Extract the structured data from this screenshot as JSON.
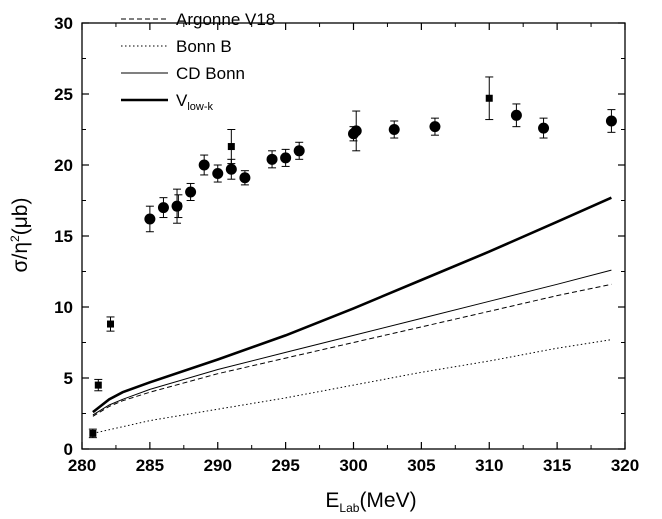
{
  "chart_data": {
    "type": "line",
    "xlabel": {
      "main": "E",
      "sub": "Lab",
      "rest": "(MeV)"
    },
    "ylabel": {
      "pre": "σ/η",
      "sup": "2",
      "rest": "(μb)"
    },
    "xlim": [
      280,
      320
    ],
    "ylim": [
      0,
      30
    ],
    "x_ticks": [
      280,
      285,
      290,
      295,
      300,
      305,
      310,
      315,
      320
    ],
    "y_ticks": [
      0,
      5,
      10,
      15,
      20,
      25,
      30
    ],
    "grid": false,
    "legend_position": "top-left",
    "series": [
      {
        "name": "Argonne V18",
        "name_sub": "",
        "style": "dashed",
        "width": 1,
        "x": [
          280.8,
          282,
          283,
          285,
          290,
          295,
          300,
          305,
          310,
          315,
          319
        ],
        "y": [
          2.3,
          3.0,
          3.4,
          4.0,
          5.3,
          6.4,
          7.5,
          8.6,
          9.7,
          10.8,
          11.6
        ]
      },
      {
        "name": "Bonn B",
        "name_sub": "",
        "style": "dotted",
        "width": 1,
        "x": [
          280.8,
          285,
          290,
          295,
          300,
          305,
          310,
          315,
          319
        ],
        "y": [
          1.1,
          2.0,
          2.8,
          3.6,
          4.5,
          5.4,
          6.2,
          7.1,
          7.7
        ]
      },
      {
        "name": "CD Bonn",
        "name_sub": "",
        "style": "solid",
        "width": 1,
        "x": [
          280.8,
          282,
          283,
          285,
          290,
          295,
          300,
          305,
          310,
          315,
          319
        ],
        "y": [
          2.4,
          3.1,
          3.5,
          4.2,
          5.6,
          6.8,
          8.0,
          9.2,
          10.4,
          11.6,
          12.6
        ]
      },
      {
        "name": "V",
        "name_sub": "low-k",
        "style": "solid",
        "width": 2.6,
        "x": [
          280.8,
          282,
          283,
          285,
          290,
          295,
          300,
          305,
          310,
          315,
          319
        ],
        "y": [
          2.6,
          3.5,
          4.0,
          4.7,
          6.3,
          8.0,
          9.9,
          11.9,
          13.9,
          16.0,
          17.7
        ]
      }
    ],
    "data_points": [
      {
        "x": 280.8,
        "y": 1.1,
        "err": 0.3,
        "marker": "square"
      },
      {
        "x": 281.2,
        "y": 4.5,
        "err": 0.4,
        "marker": "square"
      },
      {
        "x": 282.1,
        "y": 8.8,
        "err": 0.5,
        "marker": "square"
      },
      {
        "x": 285.0,
        "y": 16.2,
        "err": 0.9,
        "marker": "circle"
      },
      {
        "x": 286.0,
        "y": 17.0,
        "err": 0.7,
        "marker": "circle"
      },
      {
        "x": 287.0,
        "y": 17.1,
        "err": 1.2,
        "marker": "circle"
      },
      {
        "x": 287.1,
        "y": 17.1,
        "err": 0.8,
        "marker": "square"
      },
      {
        "x": 288.0,
        "y": 18.1,
        "err": 0.6,
        "marker": "circle"
      },
      {
        "x": 289.0,
        "y": 20.0,
        "err": 0.7,
        "marker": "circle"
      },
      {
        "x": 290.0,
        "y": 19.4,
        "err": 0.6,
        "marker": "circle"
      },
      {
        "x": 291.0,
        "y": 19.7,
        "err": 0.7,
        "marker": "circle"
      },
      {
        "x": 291.0,
        "y": 21.3,
        "err": 1.2,
        "marker": "square"
      },
      {
        "x": 292.0,
        "y": 19.1,
        "err": 0.5,
        "marker": "circle"
      },
      {
        "x": 294.0,
        "y": 20.4,
        "err": 0.6,
        "marker": "circle"
      },
      {
        "x": 295.0,
        "y": 20.5,
        "err": 0.6,
        "marker": "circle"
      },
      {
        "x": 296.0,
        "y": 21.0,
        "err": 0.6,
        "marker": "circle"
      },
      {
        "x": 300.0,
        "y": 22.2,
        "err": 0.5,
        "marker": "circle"
      },
      {
        "x": 300.2,
        "y": 22.4,
        "err": 1.4,
        "marker": "circle"
      },
      {
        "x": 303.0,
        "y": 22.5,
        "err": 0.6,
        "marker": "circle"
      },
      {
        "x": 306.0,
        "y": 22.7,
        "err": 0.6,
        "marker": "circle"
      },
      {
        "x": 310.0,
        "y": 24.7,
        "err": 1.5,
        "marker": "square"
      },
      {
        "x": 312.0,
        "y": 23.5,
        "err": 0.8,
        "marker": "circle"
      },
      {
        "x": 314.0,
        "y": 22.6,
        "err": 0.7,
        "marker": "circle"
      },
      {
        "x": 319.0,
        "y": 23.1,
        "err": 0.8,
        "marker": "circle"
      }
    ]
  }
}
